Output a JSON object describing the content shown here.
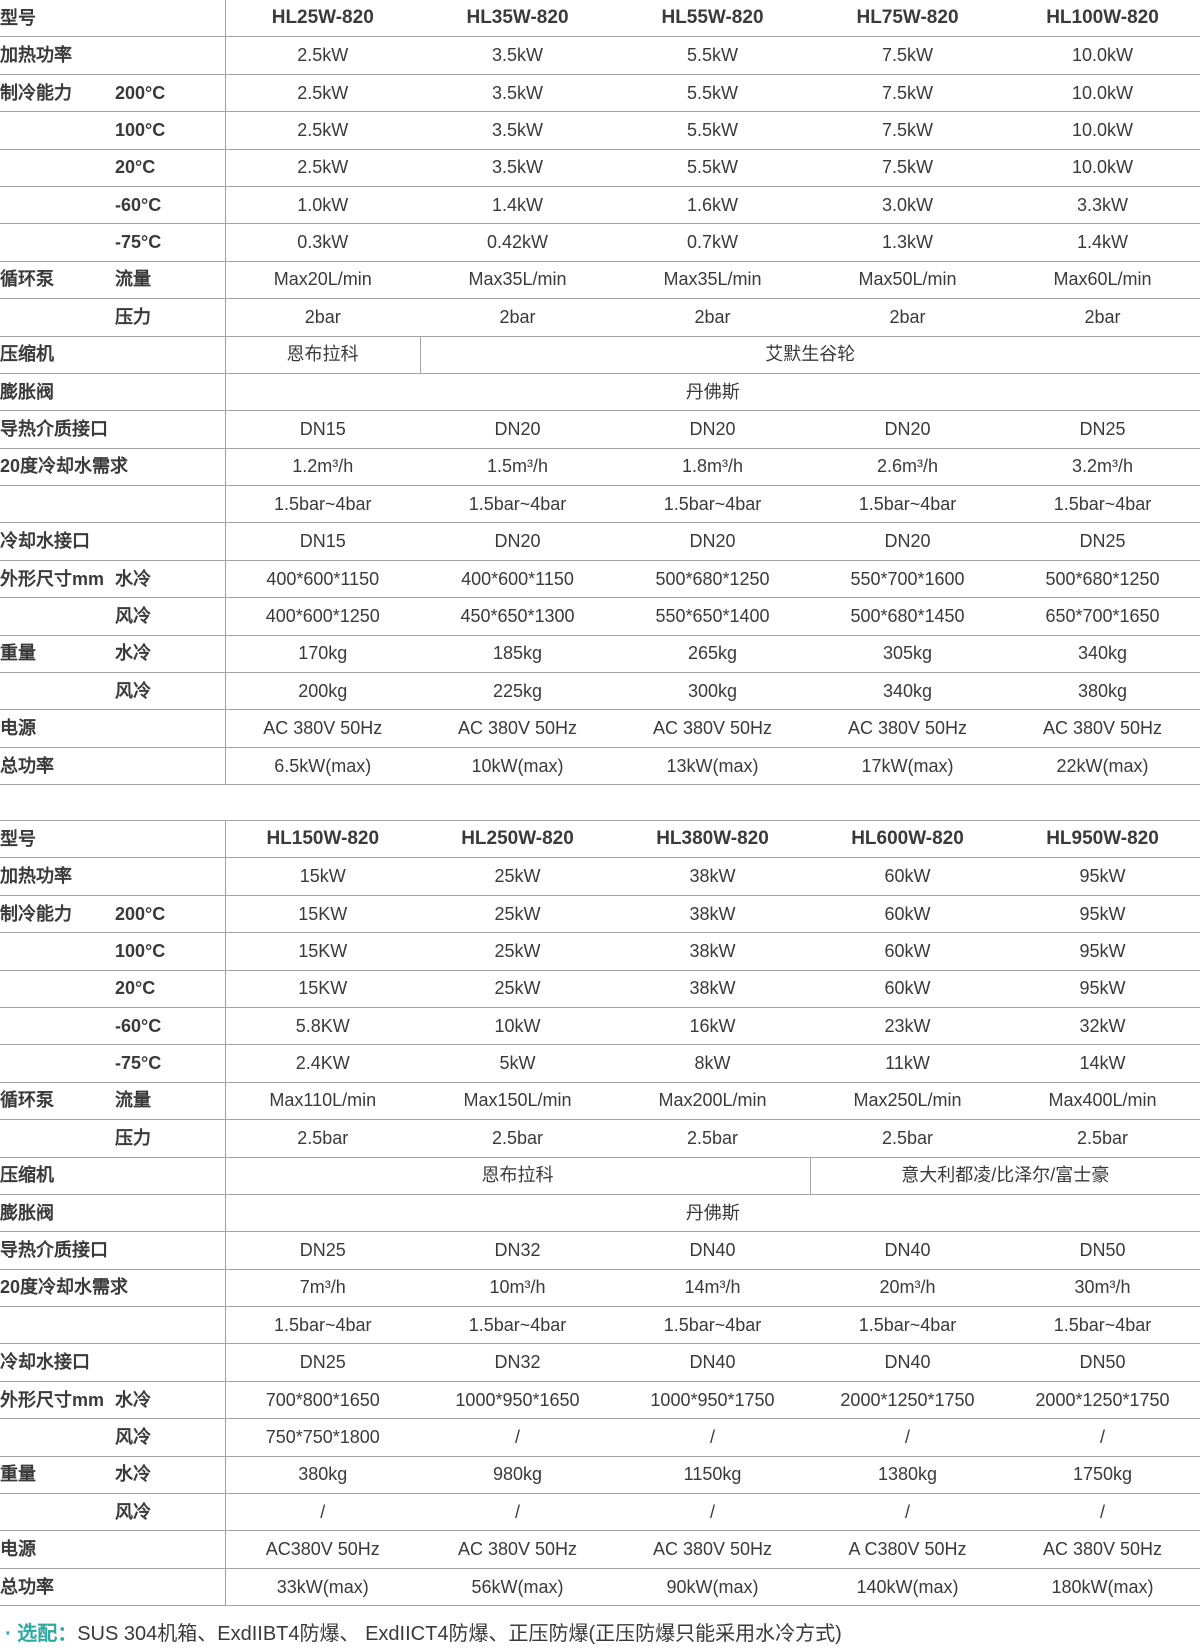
{
  "colors": {
    "accent": "#2fa9a4",
    "text": "#3a3a3a",
    "border": "#a3a3a3",
    "background": "#ffffff"
  },
  "footnote": {
    "prefix": "· 选配：",
    "text": "SUS 304机箱、ExdIIBT4防爆、 ExdIICT4防爆、正压防爆(正压防爆只能采用水冷方式)"
  },
  "tables": [
    {
      "name": "spec-table-1",
      "rows": [
        {
          "label": "型号",
          "sub": "",
          "header": true,
          "cells": [
            {
              "t": "HL25W-820"
            },
            {
              "t": "HL35W-820"
            },
            {
              "t": "HL55W-820"
            },
            {
              "t": "HL75W-820"
            },
            {
              "t": "HL100W-820"
            }
          ]
        },
        {
          "label": "加热功率",
          "sub": "",
          "cells": [
            {
              "t": "2.5kW"
            },
            {
              "t": "3.5kW"
            },
            {
              "t": "5.5kW"
            },
            {
              "t": "7.5kW"
            },
            {
              "t": "10.0kW"
            }
          ]
        },
        {
          "label": "制冷能力",
          "sub": "200°C",
          "cells": [
            {
              "t": "2.5kW"
            },
            {
              "t": "3.5kW"
            },
            {
              "t": "5.5kW"
            },
            {
              "t": "7.5kW"
            },
            {
              "t": "10.0kW"
            }
          ]
        },
        {
          "label": "",
          "sub": "100°C",
          "cells": [
            {
              "t": "2.5kW"
            },
            {
              "t": "3.5kW"
            },
            {
              "t": "5.5kW"
            },
            {
              "t": "7.5kW"
            },
            {
              "t": "10.0kW"
            }
          ]
        },
        {
          "label": "",
          "sub": "20°C",
          "cells": [
            {
              "t": "2.5kW"
            },
            {
              "t": "3.5kW"
            },
            {
              "t": "5.5kW"
            },
            {
              "t": "7.5kW"
            },
            {
              "t": "10.0kW"
            }
          ]
        },
        {
          "label": "",
          "sub": "-60°C",
          "cells": [
            {
              "t": "1.0kW"
            },
            {
              "t": "1.4kW"
            },
            {
              "t": "1.6kW"
            },
            {
              "t": "3.0kW"
            },
            {
              "t": "3.3kW"
            }
          ]
        },
        {
          "label": "",
          "sub": "-75°C",
          "cells": [
            {
              "t": "0.3kW"
            },
            {
              "t": "0.42kW"
            },
            {
              "t": "0.7kW"
            },
            {
              "t": "1.3kW"
            },
            {
              "t": "1.4kW"
            }
          ]
        },
        {
          "label": "循环泵",
          "sub": "流量",
          "cells": [
            {
              "t": "Max20L/min"
            },
            {
              "t": "Max35L/min"
            },
            {
              "t": "Max35L/min"
            },
            {
              "t": "Max50L/min"
            },
            {
              "t": "Max60L/min"
            }
          ]
        },
        {
          "label": "",
          "sub": "压力",
          "cells": [
            {
              "t": "2bar"
            },
            {
              "t": "2bar"
            },
            {
              "t": "2bar"
            },
            {
              "t": "2bar"
            },
            {
              "t": "2bar"
            }
          ]
        },
        {
          "label": "压缩机",
          "sub": "",
          "cells": [
            {
              "t": "恩布拉科",
              "span": 1
            },
            {
              "t": "艾默生谷轮",
              "span": 4
            }
          ]
        },
        {
          "label": "膨胀阀",
          "sub": "",
          "cells": [
            {
              "t": "丹佛斯",
              "span": 5
            }
          ]
        },
        {
          "label": "导热介质接口",
          "sub": "",
          "cells": [
            {
              "t": "DN15"
            },
            {
              "t": "DN20"
            },
            {
              "t": "DN20"
            },
            {
              "t": "DN20"
            },
            {
              "t": "DN25"
            }
          ]
        },
        {
          "label": "20度冷却水需求",
          "sub": "",
          "cells": [
            {
              "t": "1.2m³/h"
            },
            {
              "t": "1.5m³/h"
            },
            {
              "t": "1.8m³/h"
            },
            {
              "t": "2.6m³/h"
            },
            {
              "t": "3.2m³/h"
            }
          ]
        },
        {
          "label": "",
          "sub": "",
          "cells": [
            {
              "t": "1.5bar~4bar"
            },
            {
              "t": "1.5bar~4bar"
            },
            {
              "t": "1.5bar~4bar"
            },
            {
              "t": "1.5bar~4bar"
            },
            {
              "t": "1.5bar~4bar"
            }
          ]
        },
        {
          "label": "冷却水接口",
          "sub": "",
          "cells": [
            {
              "t": "DN15"
            },
            {
              "t": "DN20"
            },
            {
              "t": "DN20"
            },
            {
              "t": "DN20"
            },
            {
              "t": "DN25"
            }
          ]
        },
        {
          "label": "外形尺寸mm",
          "sub": "水冷",
          "cells": [
            {
              "t": "400*600*1150"
            },
            {
              "t": "400*600*1150"
            },
            {
              "t": "500*680*1250"
            },
            {
              "t": "550*700*1600"
            },
            {
              "t": "500*680*1250"
            }
          ]
        },
        {
          "label": "",
          "sub": "风冷",
          "cells": [
            {
              "t": "400*600*1250"
            },
            {
              "t": "450*650*1300"
            },
            {
              "t": "550*650*1400"
            },
            {
              "t": "500*680*1450"
            },
            {
              "t": "650*700*1650"
            }
          ]
        },
        {
          "label": "重量",
          "sub": "水冷",
          "cells": [
            {
              "t": "170kg"
            },
            {
              "t": "185kg"
            },
            {
              "t": "265kg"
            },
            {
              "t": "305kg"
            },
            {
              "t": "340kg"
            }
          ]
        },
        {
          "label": "",
          "sub": "风冷",
          "cells": [
            {
              "t": "200kg"
            },
            {
              "t": "225kg"
            },
            {
              "t": "300kg"
            },
            {
              "t": "340kg"
            },
            {
              "t": "380kg"
            }
          ]
        },
        {
          "label": "电源",
          "sub": "",
          "cells": [
            {
              "t": "AC 380V 50Hz"
            },
            {
              "t": "AC 380V 50Hz"
            },
            {
              "t": "AC 380V 50Hz"
            },
            {
              "t": "AC 380V 50Hz"
            },
            {
              "t": "AC 380V 50Hz"
            }
          ]
        },
        {
          "label": "总功率",
          "sub": "",
          "cells": [
            {
              "t": "6.5kW(max)"
            },
            {
              "t": "10kW(max)"
            },
            {
              "t": "13kW(max)"
            },
            {
              "t": "17kW(max)"
            },
            {
              "t": "22kW(max)"
            }
          ]
        }
      ]
    },
    {
      "name": "spec-table-2",
      "rows": [
        {
          "label": "型号",
          "sub": "",
          "header": true,
          "cells": [
            {
              "t": "HL150W-820"
            },
            {
              "t": "HL250W-820"
            },
            {
              "t": "HL380W-820"
            },
            {
              "t": "HL600W-820"
            },
            {
              "t": "HL950W-820"
            }
          ]
        },
        {
          "label": "加热功率",
          "sub": "",
          "cells": [
            {
              "t": "15kW"
            },
            {
              "t": "25kW"
            },
            {
              "t": "38kW"
            },
            {
              "t": "60kW"
            },
            {
              "t": "95kW"
            }
          ]
        },
        {
          "label": "制冷能力",
          "sub": "200°C",
          "cells": [
            {
              "t": "15KW"
            },
            {
              "t": "25kW"
            },
            {
              "t": "38kW"
            },
            {
              "t": "60kW"
            },
            {
              "t": "95kW"
            }
          ]
        },
        {
          "label": "",
          "sub": "100°C",
          "cells": [
            {
              "t": "15KW"
            },
            {
              "t": "25kW"
            },
            {
              "t": "38kW"
            },
            {
              "t": "60kW"
            },
            {
              "t": "95kW"
            }
          ]
        },
        {
          "label": "",
          "sub": "20°C",
          "cells": [
            {
              "t": "15KW"
            },
            {
              "t": "25kW"
            },
            {
              "t": "38kW"
            },
            {
              "t": "60kW"
            },
            {
              "t": "95kW"
            }
          ]
        },
        {
          "label": "",
          "sub": "-60°C",
          "cells": [
            {
              "t": "5.8KW"
            },
            {
              "t": "10kW"
            },
            {
              "t": "16kW"
            },
            {
              "t": "23kW"
            },
            {
              "t": "32kW"
            }
          ]
        },
        {
          "label": "",
          "sub": "-75°C",
          "cells": [
            {
              "t": "2.4KW"
            },
            {
              "t": "5kW"
            },
            {
              "t": "8kW"
            },
            {
              "t": "11kW"
            },
            {
              "t": "14kW"
            }
          ]
        },
        {
          "label": "循环泵",
          "sub": "流量",
          "cells": [
            {
              "t": "Max110L/min"
            },
            {
              "t": "Max150L/min"
            },
            {
              "t": "Max200L/min"
            },
            {
              "t": "Max250L/min"
            },
            {
              "t": "Max400L/min"
            }
          ]
        },
        {
          "label": "",
          "sub": "压力",
          "cells": [
            {
              "t": "2.5bar"
            },
            {
              "t": "2.5bar"
            },
            {
              "t": "2.5bar"
            },
            {
              "t": "2.5bar"
            },
            {
              "t": "2.5bar"
            }
          ]
        },
        {
          "label": "压缩机",
          "sub": "",
          "cells": [
            {
              "t": "恩布拉科",
              "span": 3
            },
            {
              "t": "意大利都凌/比泽尔/富士豪",
              "span": 2
            }
          ]
        },
        {
          "label": "膨胀阀",
          "sub": "",
          "cells": [
            {
              "t": "丹佛斯",
              "span": 5
            }
          ]
        },
        {
          "label": "导热介质接口",
          "sub": "",
          "cells": [
            {
              "t": "DN25"
            },
            {
              "t": "DN32"
            },
            {
              "t": "DN40"
            },
            {
              "t": "DN40"
            },
            {
              "t": "DN50"
            }
          ]
        },
        {
          "label": "20度冷却水需求",
          "sub": "",
          "cells": [
            {
              "t": "7m³/h"
            },
            {
              "t": "10m³/h"
            },
            {
              "t": "14m³/h"
            },
            {
              "t": "20m³/h"
            },
            {
              "t": "30m³/h"
            }
          ]
        },
        {
          "label": "",
          "sub": "",
          "cells": [
            {
              "t": "1.5bar~4bar"
            },
            {
              "t": "1.5bar~4bar"
            },
            {
              "t": "1.5bar~4bar"
            },
            {
              "t": "1.5bar~4bar"
            },
            {
              "t": "1.5bar~4bar"
            }
          ]
        },
        {
          "label": "冷却水接口",
          "sub": "",
          "cells": [
            {
              "t": "DN25"
            },
            {
              "t": "DN32"
            },
            {
              "t": "DN40"
            },
            {
              "t": "DN40"
            },
            {
              "t": "DN50"
            }
          ]
        },
        {
          "label": "外形尺寸mm",
          "sub": "水冷",
          "cells": [
            {
              "t": "700*800*1650"
            },
            {
              "t": "1000*950*1650"
            },
            {
              "t": "1000*950*1750"
            },
            {
              "t": "2000*1250*1750"
            },
            {
              "t": "2000*1250*1750"
            }
          ]
        },
        {
          "label": "",
          "sub": "风冷",
          "cells": [
            {
              "t": "750*750*1800"
            },
            {
              "t": "/"
            },
            {
              "t": "/"
            },
            {
              "t": "/"
            },
            {
              "t": "/"
            }
          ]
        },
        {
          "label": "重量",
          "sub": "水冷",
          "cells": [
            {
              "t": "380kg"
            },
            {
              "t": "980kg"
            },
            {
              "t": "1150kg"
            },
            {
              "t": "1380kg"
            },
            {
              "t": "1750kg"
            }
          ]
        },
        {
          "label": "",
          "sub": "风冷",
          "cells": [
            {
              "t": "/"
            },
            {
              "t": "/"
            },
            {
              "t": "/"
            },
            {
              "t": "/"
            },
            {
              "t": "/"
            }
          ]
        },
        {
          "label": "电源",
          "sub": "",
          "cells": [
            {
              "t": "AC380V 50Hz"
            },
            {
              "t": "AC 380V 50Hz"
            },
            {
              "t": "AC 380V 50Hz"
            },
            {
              "t": "A C380V 50Hz"
            },
            {
              "t": "AC 380V 50Hz"
            }
          ]
        },
        {
          "label": "总功率",
          "sub": "",
          "cells": [
            {
              "t": "33kW(max)"
            },
            {
              "t": "56kW(max)"
            },
            {
              "t": "90kW(max)"
            },
            {
              "t": "140kW(max)"
            },
            {
              "t": "180kW(max)"
            }
          ]
        }
      ]
    }
  ]
}
